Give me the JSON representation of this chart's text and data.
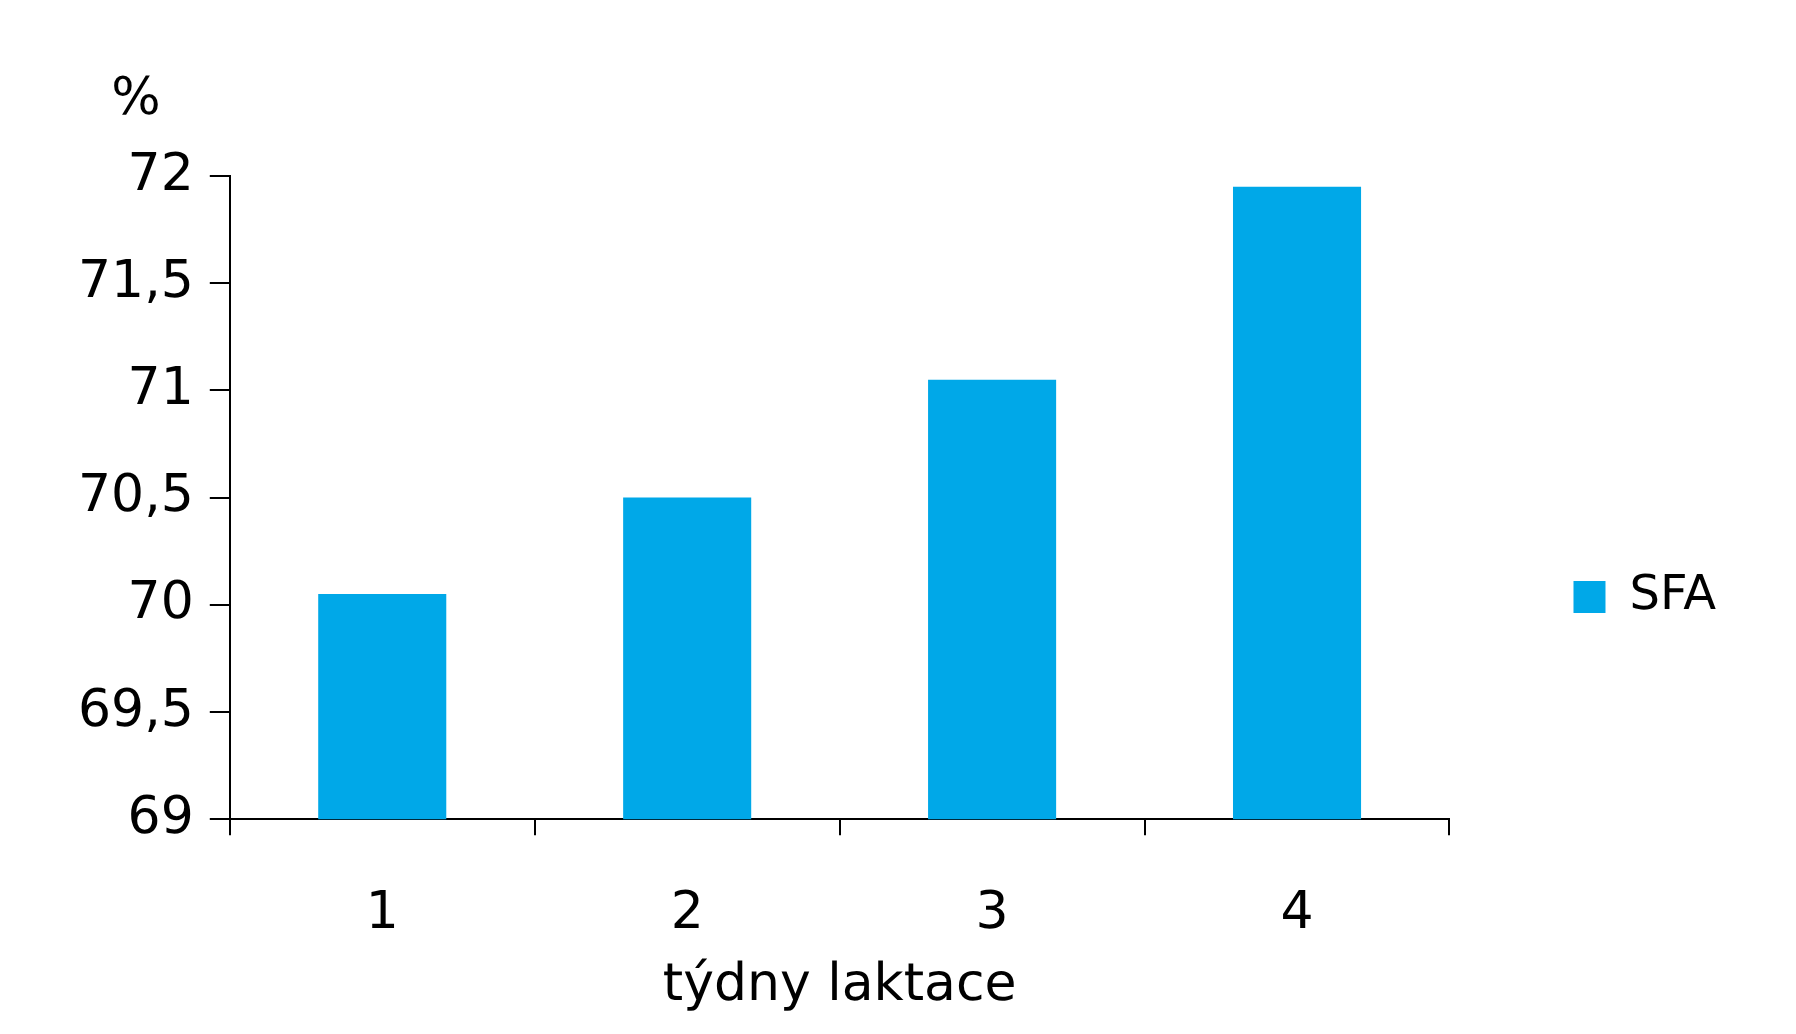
{
  "chart_data": {
    "type": "bar",
    "categories": [
      "1",
      "2",
      "3",
      "4"
    ],
    "series": [
      {
        "name": "SFA",
        "color": "#00a8e8",
        "values": [
          70.05,
          70.5,
          71.05,
          71.95
        ]
      }
    ],
    "xlabel": "týdny laktace",
    "ylabel": "%",
    "ylim": [
      69,
      72
    ],
    "yticks": [
      69,
      {
        "value": 69.5,
        "label": "69,5"
      },
      70,
      {
        "value": 70.5,
        "label": "70,5"
      },
      71,
      {
        "value": 71.5,
        "label": "71,5"
      },
      72
    ],
    "legend": "right"
  }
}
